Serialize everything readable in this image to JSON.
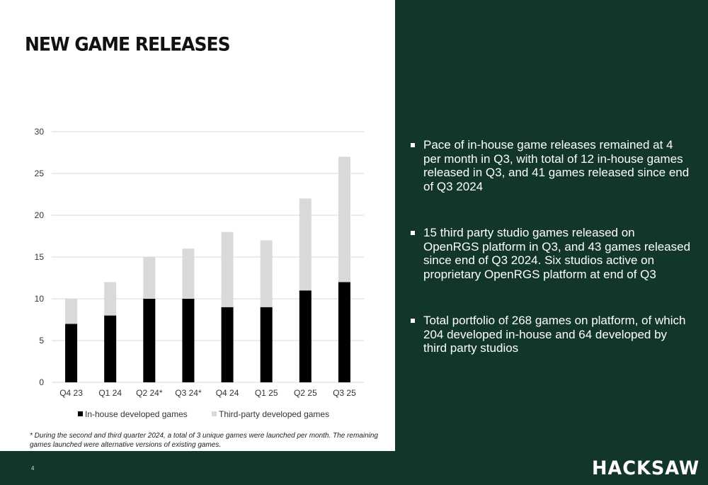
{
  "header": {
    "title": "NEW GAME RELEASES"
  },
  "chart_data": {
    "type": "bar",
    "stacked": true,
    "categories": [
      "Q4 23",
      "Q1 24",
      "Q2 24*",
      "Q3 24*",
      "Q4 24",
      "Q1 25",
      "Q2 25",
      "Q3 25"
    ],
    "series": [
      {
        "name": "In-house developed games",
        "color": "#000000",
        "values": [
          7,
          8,
          10,
          10,
          9,
          9,
          11,
          12
        ]
      },
      {
        "name": "Third-party developed games",
        "color": "#d9d9d9",
        "values": [
          3,
          4,
          5,
          6,
          9,
          8,
          11,
          15
        ]
      }
    ],
    "ylim": [
      0,
      30
    ],
    "yticks": [
      0,
      5,
      10,
      15,
      20,
      25,
      30
    ],
    "grid": true,
    "legend_position": "bottom"
  },
  "footnote": "* During the second and third quarter 2024, a total of 3 unique games were launched per month. The remaining games launched were alternative versions of existing games.",
  "bullets": [
    "Pace of in-house game releases remained at 4 per month in Q3, with total of 12 in-house games released in Q3, and 41 games released since end of Q3 2024",
    "15 third party studio games released on OpenRGS platform in Q3, and 43 games released since end of Q3 2024. Six studios active on proprietary OpenRGS platform at end of Q3",
    "Total portfolio of 268 games on platform, of which 204 developed in-house and 64 developed by third party studios"
  ],
  "footer": {
    "page_number": "4",
    "logo": "HACKSAW"
  }
}
